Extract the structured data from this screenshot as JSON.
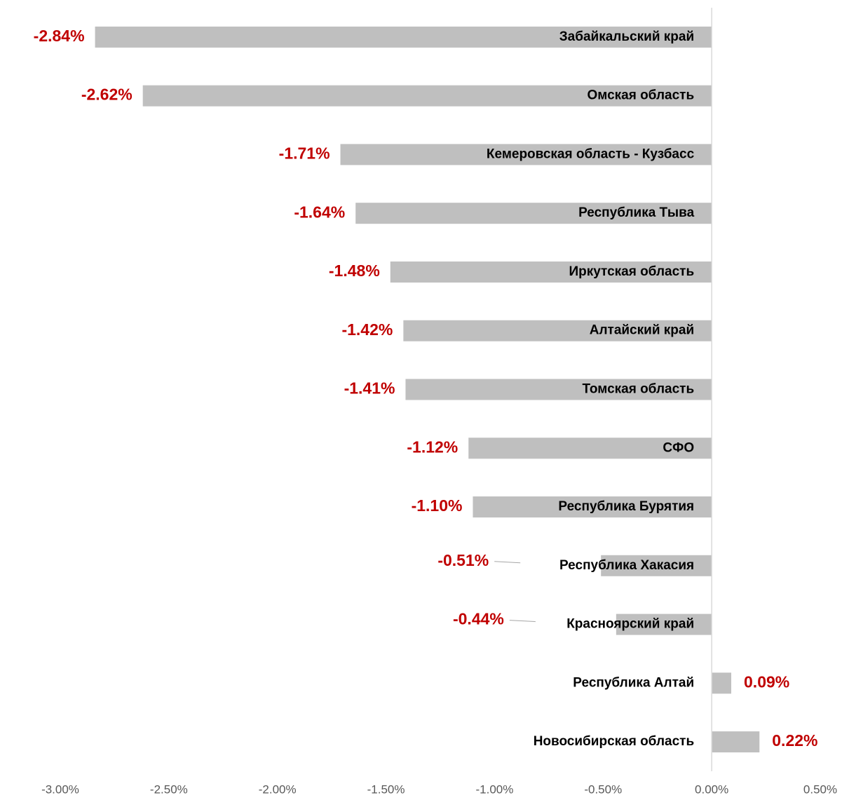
{
  "chart_data": {
    "type": "barh",
    "categories": [
      "Забайкальский край",
      "Омская область",
      "Кемеровская область - Кузбасс",
      "Республика Тыва",
      "Иркутская область",
      "Алтайский край",
      "Томская область",
      "СФО",
      "Республика Бурятия",
      "Республика Хакасия",
      "Красноярский край",
      "Республика Алтай",
      "Новосибирская область"
    ],
    "values": [
      -2.84,
      -2.62,
      -1.71,
      -1.64,
      -1.48,
      -1.42,
      -1.41,
      -1.12,
      -1.1,
      -0.51,
      -0.44,
      0.09,
      0.22
    ],
    "value_labels": [
      "-2.84%",
      "-2.62%",
      "-1.71%",
      "-1.64%",
      "-1.48%",
      "-1.42%",
      "-1.41%",
      "-1.12%",
      "-1.10%",
      "-0.51%",
      "-0.44%",
      "0.09%",
      "0.22%"
    ],
    "color": "#bfbfbf",
    "label_color": "#c00000",
    "xlim": [
      -3,
      0.5
    ],
    "xticks": [
      {
        "value": -3,
        "label": "-3.00%"
      },
      {
        "value": -2.5,
        "label": "-2.50%"
      },
      {
        "value": -2,
        "label": "-2.00%"
      },
      {
        "value": -1.5,
        "label": "-1.50%"
      },
      {
        "value": -1,
        "label": "-1.00%"
      },
      {
        "value": -0.5,
        "label": "-0.50%"
      },
      {
        "value": 0,
        "label": "0.00%"
      },
      {
        "value": 0.5,
        "label": "0.50%"
      }
    ],
    "grid": false
  }
}
